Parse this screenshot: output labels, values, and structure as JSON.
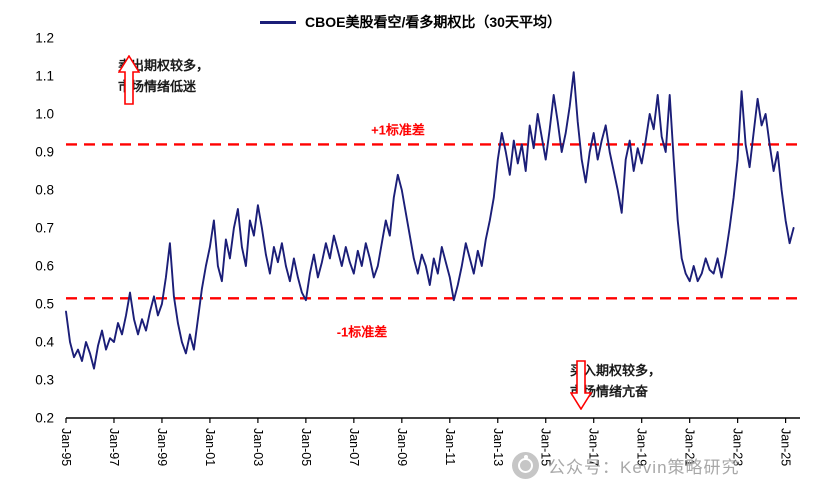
{
  "legend": {
    "label": "CBOE美股看空/看多期权比（30天平均）"
  },
  "annotations": {
    "top_left": {
      "line1": "卖出期权较多，",
      "line2": "市场情绪低迷",
      "direction": "up"
    },
    "bottom_right": {
      "line1": "买入期权较多，",
      "line2": "市场情绪亢奋",
      "direction": "down"
    }
  },
  "watermark": {
    "text": "公众号：Kevin策略研究"
  },
  "colors": {
    "line_navy": "#1b1e78",
    "std_red": "#ff0000",
    "axis_black": "#000000",
    "annotation_text": "#1a1a1a",
    "watermark_grey": "#a8a8a8"
  },
  "chart_data": {
    "type": "line",
    "title": "CBOE美股看空/看多期权比（30天平均）",
    "xlabel": "",
    "ylabel": "",
    "ylim": [
      0.2,
      1.2
    ],
    "yticks": [
      0.2,
      0.3,
      0.4,
      0.5,
      0.6,
      0.7,
      0.8,
      0.9,
      1.0,
      1.1,
      1.2
    ],
    "x_domain": [
      1995.0,
      2025.6
    ],
    "xtick_years": [
      1995,
      1997,
      1999,
      2001,
      2003,
      2005,
      2007,
      2009,
      2011,
      2013,
      2015,
      2017,
      2019,
      2021,
      2023,
      2025
    ],
    "xtick_labels": [
      "Jan-95",
      "Jan-97",
      "Jan-99",
      "Jan-01",
      "Jan-03",
      "Jan-05",
      "Jan-07",
      "Jan-09",
      "Jan-11",
      "Jan-13",
      "Jan-15",
      "Jan-17",
      "Jan-19",
      "Jan-21",
      "Jan-23",
      "Jan-25"
    ],
    "grid": false,
    "legend_position": "top-center",
    "std_lines": {
      "plus": {
        "value": 0.92,
        "label": "+1标准差"
      },
      "minus": {
        "value": 0.515,
        "label": "-1标准差"
      }
    },
    "series_name": "CBOE美股看空/看多期权比（30天平均）",
    "x_start": 1995.0,
    "x_step_years": 0.1666667,
    "values": [
      0.48,
      0.4,
      0.36,
      0.38,
      0.35,
      0.4,
      0.37,
      0.33,
      0.39,
      0.43,
      0.38,
      0.41,
      0.4,
      0.45,
      0.42,
      0.47,
      0.53,
      0.46,
      0.42,
      0.46,
      0.43,
      0.48,
      0.52,
      0.47,
      0.5,
      0.57,
      0.66,
      0.52,
      0.45,
      0.4,
      0.37,
      0.42,
      0.38,
      0.46,
      0.54,
      0.6,
      0.65,
      0.72,
      0.6,
      0.56,
      0.67,
      0.62,
      0.7,
      0.75,
      0.65,
      0.6,
      0.72,
      0.68,
      0.76,
      0.7,
      0.63,
      0.58,
      0.65,
      0.61,
      0.66,
      0.6,
      0.56,
      0.62,
      0.57,
      0.53,
      0.51,
      0.58,
      0.63,
      0.57,
      0.61,
      0.66,
      0.62,
      0.68,
      0.64,
      0.6,
      0.65,
      0.61,
      0.58,
      0.64,
      0.6,
      0.66,
      0.62,
      0.57,
      0.6,
      0.66,
      0.72,
      0.68,
      0.78,
      0.84,
      0.8,
      0.74,
      0.68,
      0.62,
      0.58,
      0.63,
      0.6,
      0.55,
      0.62,
      0.58,
      0.65,
      0.61,
      0.57,
      0.51,
      0.55,
      0.6,
      0.66,
      0.62,
      0.58,
      0.64,
      0.6,
      0.67,
      0.72,
      0.78,
      0.88,
      0.95,
      0.9,
      0.84,
      0.93,
      0.87,
      0.92,
      0.85,
      0.97,
      0.91,
      1.0,
      0.94,
      0.88,
      0.96,
      1.05,
      0.98,
      0.9,
      0.95,
      1.02,
      1.11,
      0.98,
      0.88,
      0.82,
      0.9,
      0.95,
      0.88,
      0.93,
      0.97,
      0.9,
      0.85,
      0.8,
      0.74,
      0.88,
      0.93,
      0.85,
      0.91,
      0.87,
      0.93,
      1.0,
      0.96,
      1.05,
      0.94,
      0.9,
      1.05,
      0.88,
      0.72,
      0.62,
      0.58,
      0.56,
      0.6,
      0.56,
      0.58,
      0.62,
      0.59,
      0.58,
      0.62,
      0.57,
      0.63,
      0.7,
      0.78,
      0.88,
      1.06,
      0.92,
      0.86,
      0.95,
      1.04,
      0.97,
      1.0,
      0.92,
      0.85,
      0.9,
      0.8,
      0.72,
      0.66,
      0.7
    ]
  }
}
